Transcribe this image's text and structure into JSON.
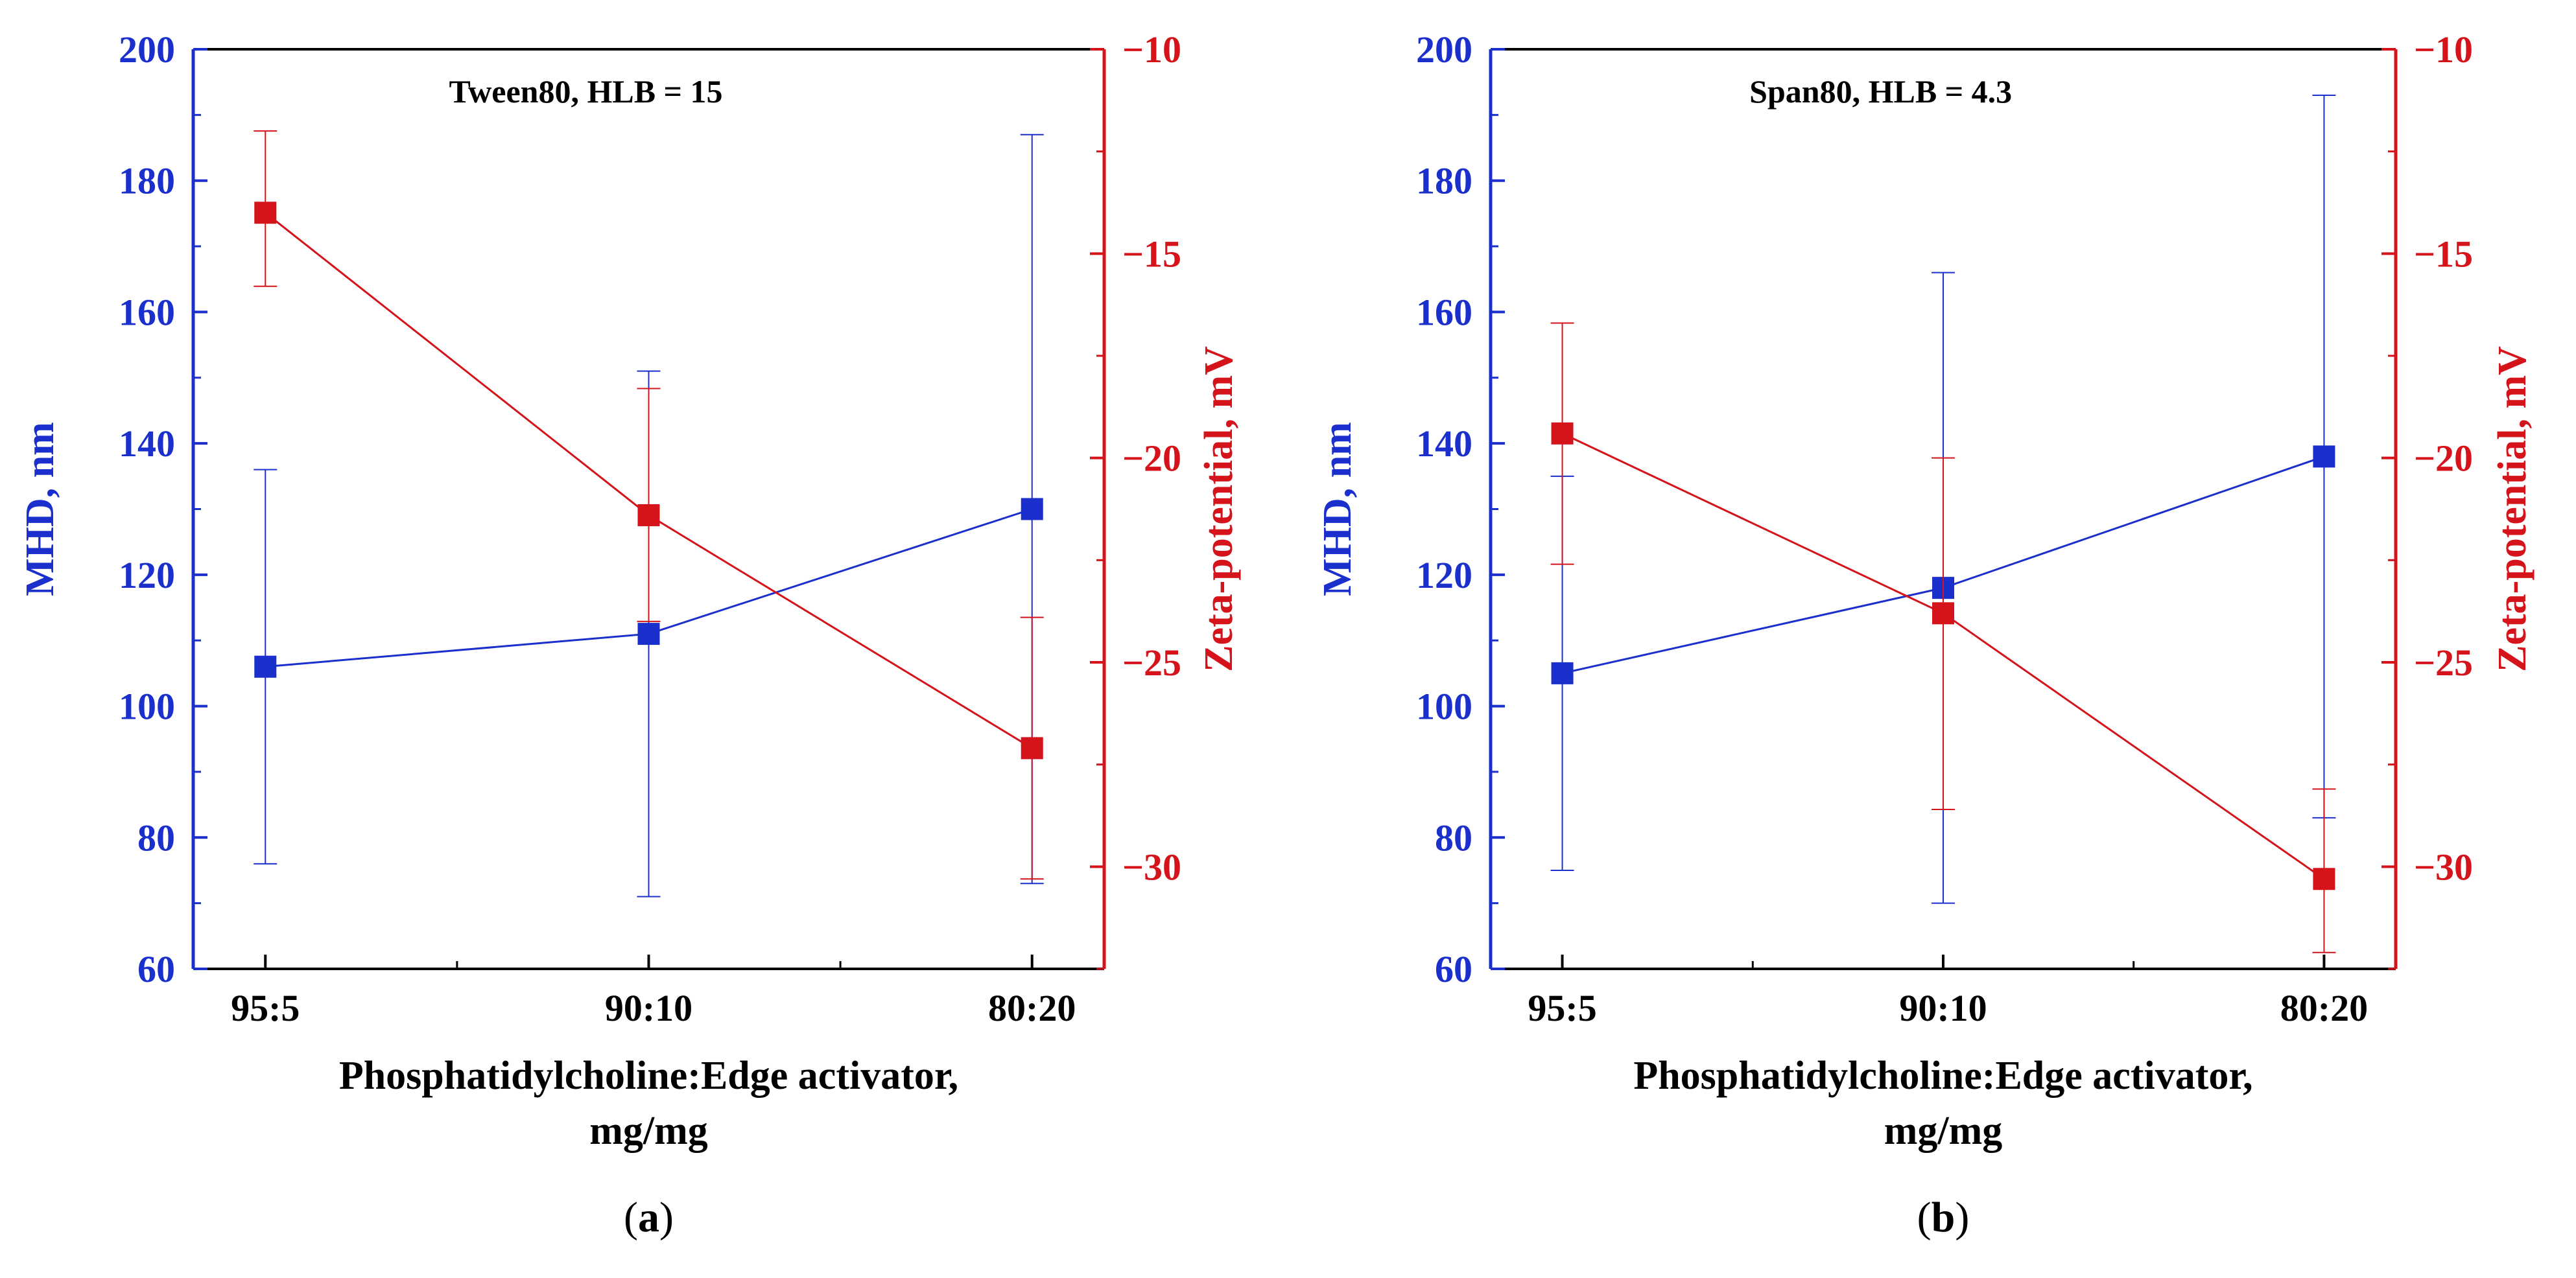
{
  "colors": {
    "mhd": "#1a2fcc",
    "zeta": "#d4141a",
    "axis": "#000000"
  },
  "chart_data": [
    {
      "type": "line",
      "panel": "a",
      "caption_letter": "a",
      "title": "Tween80, HLB = 15",
      "categories": [
        "95:5",
        "90:10",
        "80:20"
      ],
      "xlabel_line1": "Phosphatidylcholine:Edge activator,",
      "xlabel_line2": "mg/mg",
      "ylabel": "MHD, nm",
      "ylabel_right": "Zeta-potential, mV",
      "ylim": [
        60,
        200
      ],
      "yticks": [
        60,
        80,
        100,
        120,
        140,
        160,
        180,
        200
      ],
      "ylim_right": [
        -32.5,
        -10
      ],
      "yticks_right": [
        -10,
        -15,
        -20,
        -25,
        -30
      ],
      "series": [
        {
          "name": "MHD",
          "axis": "left",
          "color": "#1a2fcc",
          "values": [
            106,
            111,
            130
          ],
          "err_low": [
            76,
            71,
            73
          ],
          "err_high": [
            136,
            151,
            187
          ]
        },
        {
          "name": "Zeta-potential",
          "axis": "right",
          "color": "#d4141a",
          "values": [
            -14,
            -21.4,
            -27.1
          ],
          "err_low": [
            -15.8,
            -24,
            -30.3
          ],
          "err_high": [
            -12,
            -18.3,
            -23.9
          ]
        }
      ]
    },
    {
      "type": "line",
      "panel": "b",
      "caption_letter": "b",
      "title": "Span80, HLB = 4.3",
      "categories": [
        "95:5",
        "90:10",
        "80:20"
      ],
      "xlabel_line1": "Phosphatidylcholine:Edge activator,",
      "xlabel_line2": "mg/mg",
      "ylabel": "MHD, nm",
      "ylabel_right": "Zeta-potential, mV",
      "ylim": [
        60,
        200
      ],
      "yticks": [
        60,
        80,
        100,
        120,
        140,
        160,
        180,
        200
      ],
      "ylim_right": [
        -32.5,
        -10
      ],
      "yticks_right": [
        -10,
        -15,
        -20,
        -25,
        -30
      ],
      "series": [
        {
          "name": "MHD",
          "axis": "left",
          "color": "#1a2fcc",
          "values": [
            105,
            118,
            138
          ],
          "err_low": [
            75,
            70,
            83
          ],
          "err_high": [
            135,
            166,
            193
          ]
        },
        {
          "name": "Zeta-potential",
          "axis": "right",
          "color": "#d4141a",
          "values": [
            -19.4,
            -23.8,
            -30.3
          ],
          "err_low": [
            -22.6,
            -28.6,
            -32.1
          ],
          "err_high": [
            -16.7,
            -20,
            -28.1
          ]
        }
      ]
    }
  ]
}
